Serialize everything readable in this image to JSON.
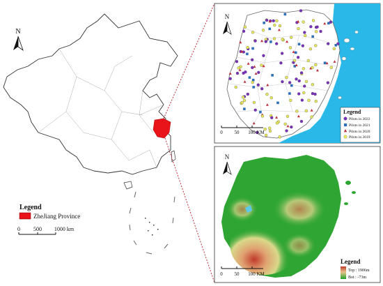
{
  "main_map": {
    "north_label": "N",
    "legend_title": "Legend",
    "legend_item": "ZheJiang Province",
    "scale_labels": [
      "0",
      "500",
      "1000 km"
    ],
    "highlight_color": "#e8141a"
  },
  "pilots_panel": {
    "north_label": "N",
    "legend_title": "Legend",
    "legend_items": [
      {
        "label": "Pilots in 2022",
        "color": "#7b2fbf",
        "shape": "circle"
      },
      {
        "label": "Pilots in 2021",
        "color": "#2e6fb7",
        "shape": "square"
      },
      {
        "label": "Pilots in 2020",
        "color": "#c0303a",
        "shape": "triangle"
      },
      {
        "label": "Pilots in 2019",
        "color": "#e8e85a",
        "shape": "circle"
      }
    ],
    "scale_labels": [
      "0",
      "50",
      "100 KM"
    ],
    "sea_color": "#29b8e8"
  },
  "dem_panel": {
    "north_label": "N",
    "legend_title": "Legend",
    "legend_top": "Top : 1906m",
    "legend_bot": "Bot : -73m",
    "scale_labels": [
      "0",
      "50",
      "100 KM"
    ],
    "top_color": "#c0392b",
    "bot_color": "#1fa32a"
  }
}
